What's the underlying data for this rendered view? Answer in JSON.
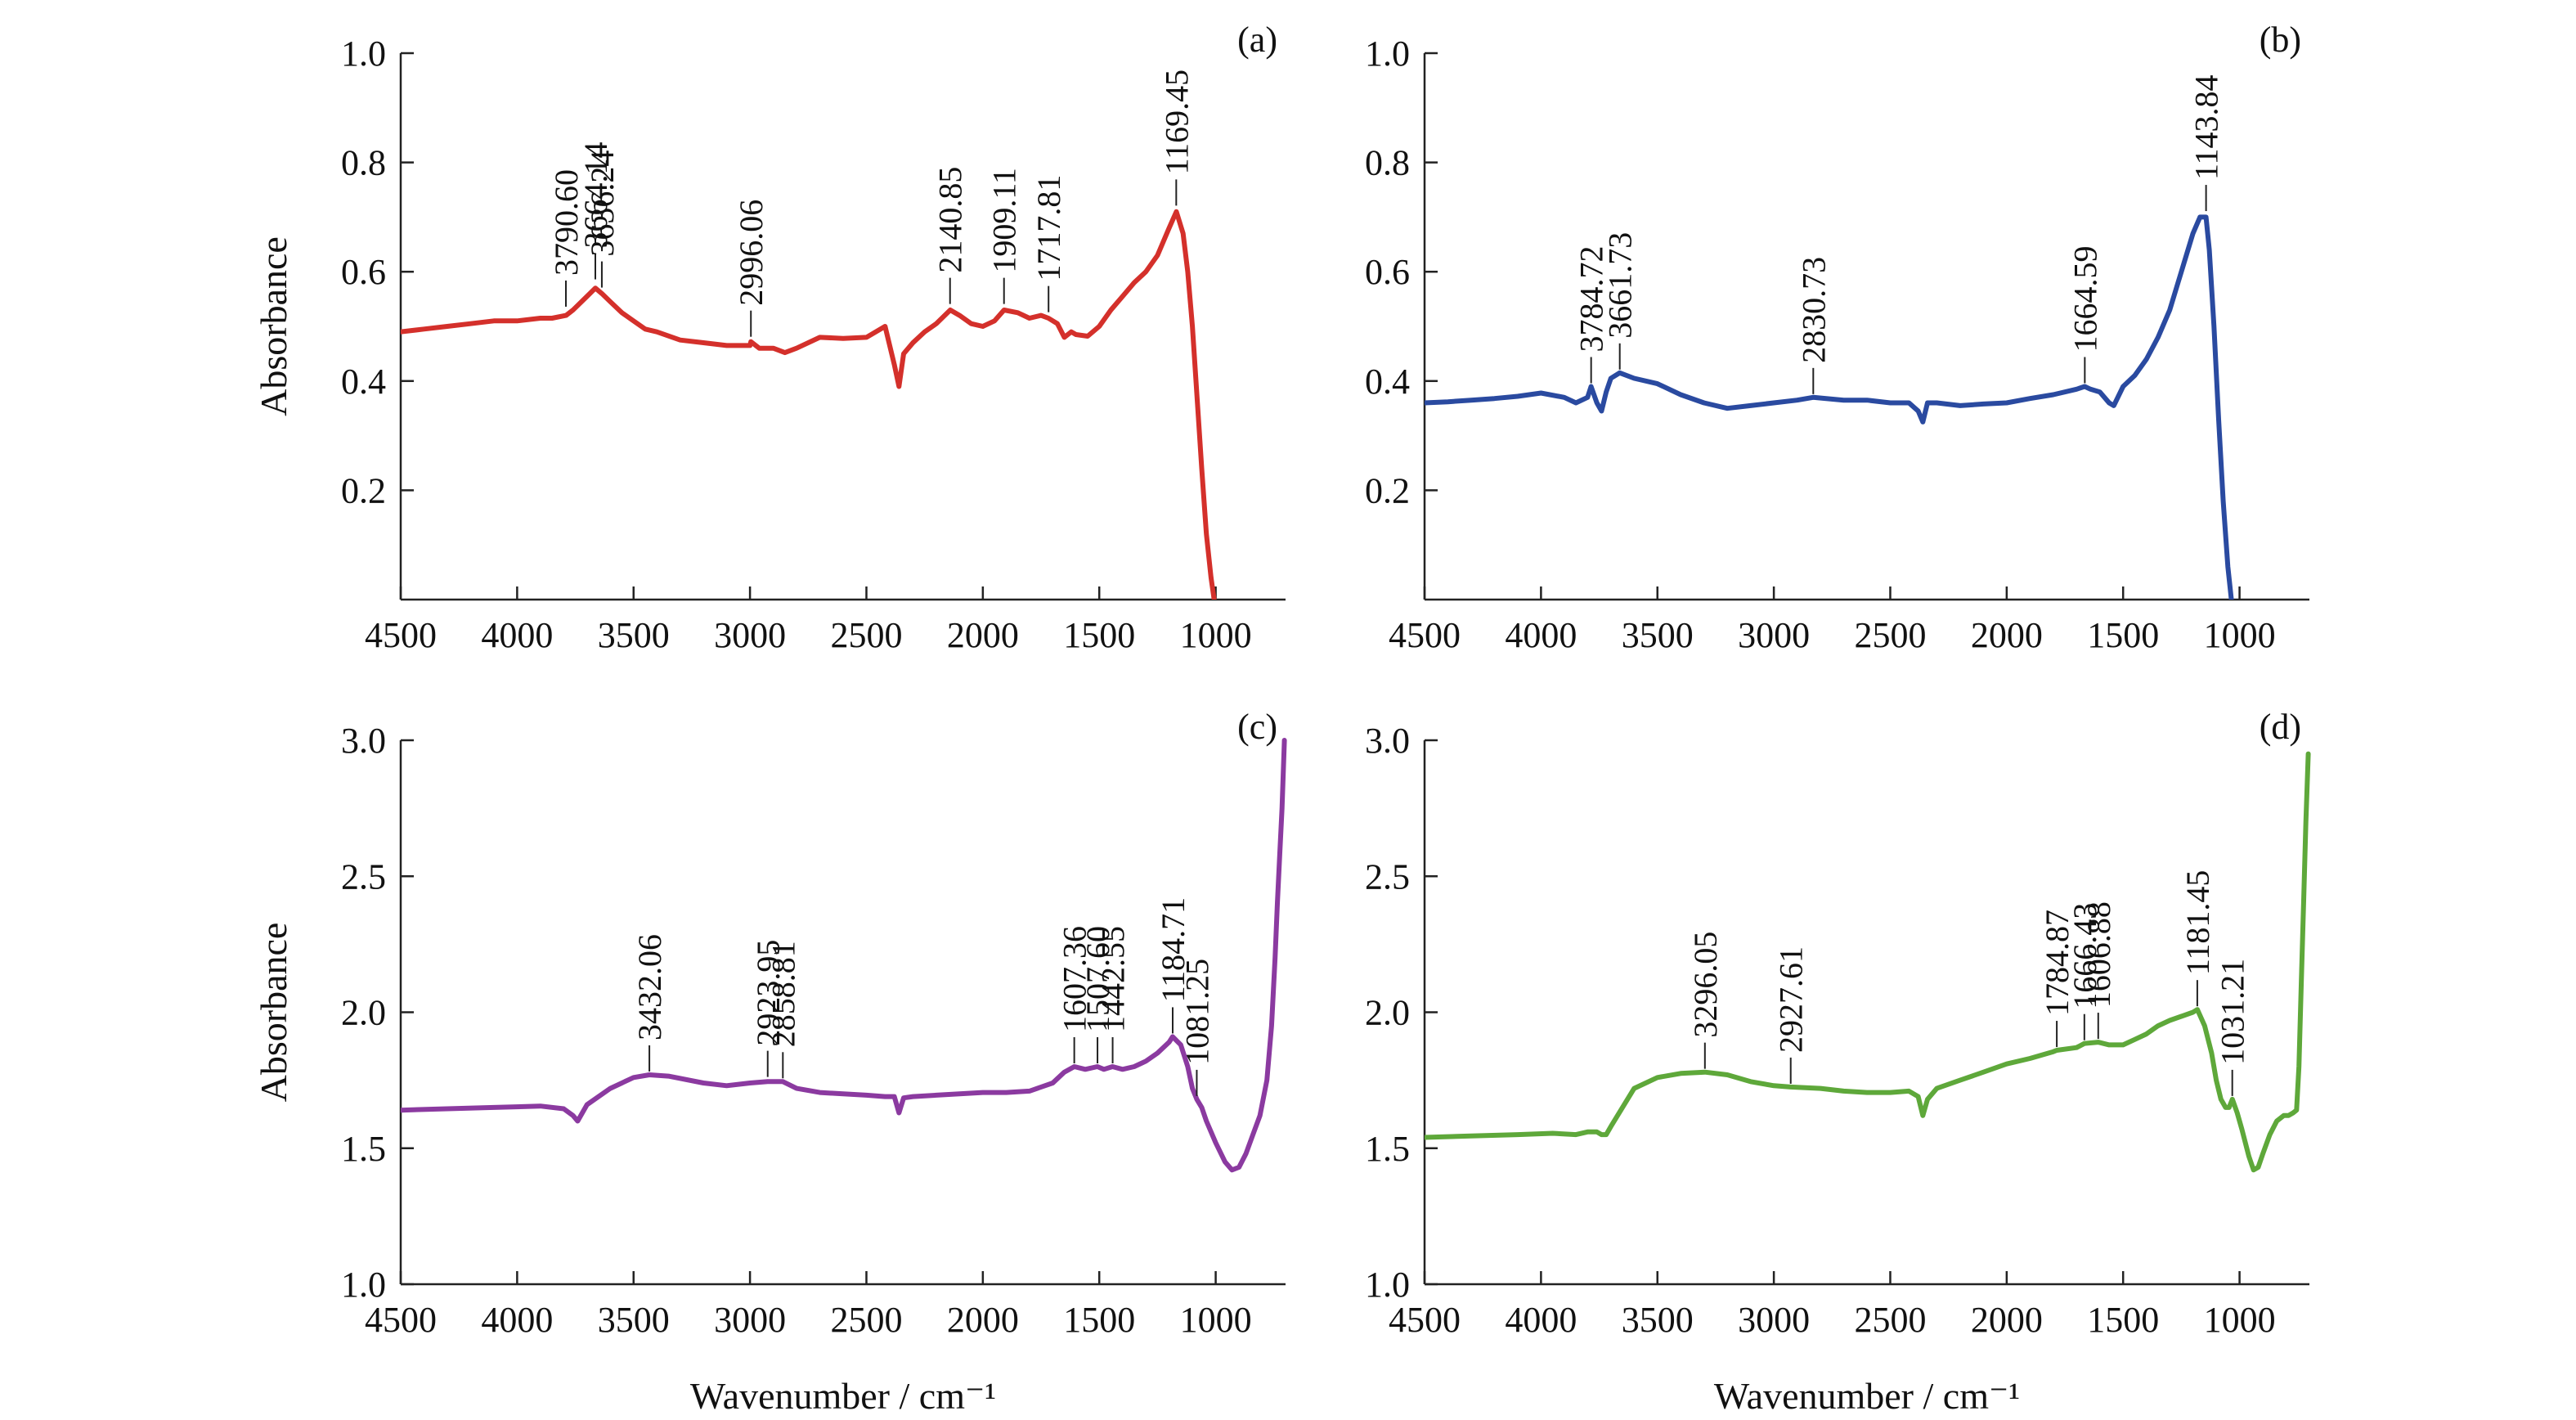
{
  "chart_data": [
    {
      "type": "line",
      "panel": "(a)",
      "ylabel": "Absorbance",
      "xlabel": "",
      "xlim": [
        4500,
        700
      ],
      "ylim": [
        0,
        1.0
      ],
      "x_ticks": [
        "4500",
        "4000",
        "3500",
        "3000",
        "2500",
        "2000",
        "1500",
        "1000"
      ],
      "y_ticks": [
        "0.2",
        "0.4",
        "0.6",
        "0.8",
        "1.0"
      ],
      "color": "#d4302b",
      "series": [
        {
          "x": [
            4500,
            4400,
            4300,
            4200,
            4100,
            4000,
            3900,
            3850,
            3790,
            3760,
            3700,
            3664,
            3636,
            3600,
            3550,
            3500,
            3450,
            3400,
            3300,
            3200,
            3100,
            3000,
            2996,
            2960,
            2900,
            2850,
            2800,
            2700,
            2600,
            2500,
            2420,
            2380,
            2360,
            2340,
            2300,
            2250,
            2200,
            2140,
            2100,
            2050,
            2000,
            1950,
            1909,
            1850,
            1800,
            1750,
            1718,
            1680,
            1650,
            1620,
            1600,
            1550,
            1500,
            1450,
            1400,
            1350,
            1300,
            1250,
            1200,
            1169,
            1140,
            1120,
            1100,
            1080,
            1060,
            1040,
            1020,
            1000
          ],
          "y": [
            0.49,
            0.495,
            0.5,
            0.505,
            0.51,
            0.51,
            0.515,
            0.515,
            0.52,
            0.53,
            0.555,
            0.57,
            0.56,
            0.545,
            0.525,
            0.51,
            0.495,
            0.49,
            0.475,
            0.47,
            0.465,
            0.465,
            0.472,
            0.46,
            0.46,
            0.452,
            0.46,
            0.48,
            0.478,
            0.48,
            0.5,
            0.43,
            0.39,
            0.45,
            0.47,
            0.49,
            0.505,
            0.53,
            0.52,
            0.505,
            0.5,
            0.51,
            0.53,
            0.525,
            0.515,
            0.52,
            0.515,
            0.505,
            0.48,
            0.49,
            0.485,
            0.482,
            0.5,
            0.53,
            0.555,
            0.58,
            0.6,
            0.63,
            0.68,
            0.71,
            0.67,
            0.6,
            0.5,
            0.37,
            0.24,
            0.12,
            0.04,
            -0.02
          ]
        }
      ],
      "peaks": [
        {
          "label": "3790.60",
          "x": 3790.6,
          "y": 0.53
        },
        {
          "label": "3664.14",
          "x": 3664.14,
          "y": 0.58
        },
        {
          "label": "3636.24",
          "x": 3636.24,
          "y": 0.565
        },
        {
          "label": "2996.06",
          "x": 2996.06,
          "y": 0.475
        },
        {
          "label": "2140.85",
          "x": 2140.85,
          "y": 0.535
        },
        {
          "label": "1909.11",
          "x": 1909.11,
          "y": 0.535
        },
        {
          "label": "1717.81",
          "x": 1717.81,
          "y": 0.52
        },
        {
          "label": "1169.45",
          "x": 1169.45,
          "y": 0.715
        }
      ]
    },
    {
      "type": "line",
      "panel": "(b)",
      "ylabel": "",
      "xlabel": "",
      "xlim": [
        4500,
        700
      ],
      "ylim": [
        0,
        1.0
      ],
      "x_ticks": [
        "4500",
        "4000",
        "3500",
        "3000",
        "2500",
        "2000",
        "1500",
        "1000"
      ],
      "y_ticks": [
        "0.2",
        "0.4",
        "0.6",
        "0.8",
        "1.0"
      ],
      "color": "#2a4aa0",
      "series": [
        {
          "x": [
            4500,
            4400,
            4300,
            4200,
            4100,
            4000,
            3900,
            3850,
            3800,
            3785,
            3760,
            3740,
            3720,
            3700,
            3662,
            3600,
            3500,
            3400,
            3300,
            3200,
            3100,
            3000,
            2900,
            2831,
            2700,
            2600,
            2500,
            2420,
            2380,
            2360,
            2340,
            2300,
            2200,
            2100,
            2000,
            1900,
            1800,
            1700,
            1665,
            1640,
            1600,
            1560,
            1540,
            1500,
            1450,
            1400,
            1350,
            1300,
            1250,
            1200,
            1170,
            1144,
            1130,
            1110,
            1090,
            1070,
            1050,
            1030
          ],
          "y": [
            0.36,
            0.362,
            0.365,
            0.368,
            0.372,
            0.378,
            0.37,
            0.36,
            0.37,
            0.39,
            0.36,
            0.345,
            0.38,
            0.405,
            0.415,
            0.405,
            0.395,
            0.375,
            0.36,
            0.35,
            0.355,
            0.36,
            0.365,
            0.37,
            0.365,
            0.365,
            0.36,
            0.36,
            0.345,
            0.325,
            0.36,
            0.36,
            0.355,
            0.358,
            0.36,
            0.368,
            0.375,
            0.385,
            0.39,
            0.385,
            0.38,
            0.36,
            0.355,
            0.39,
            0.41,
            0.44,
            0.48,
            0.53,
            0.6,
            0.67,
            0.7,
            0.7,
            0.64,
            0.5,
            0.33,
            0.18,
            0.06,
            -0.02
          ]
        }
      ],
      "peaks": [
        {
          "label": "3784.72",
          "x": 3784.72,
          "y": 0.39
        },
        {
          "label": "3661.73",
          "x": 3661.73,
          "y": 0.415
        },
        {
          "label": "2830.73",
          "x": 2830.73,
          "y": 0.37
        },
        {
          "label": "1664.59",
          "x": 1664.59,
          "y": 0.39
        },
        {
          "label": "1143.84",
          "x": 1143.84,
          "y": 0.705
        }
      ]
    },
    {
      "type": "line",
      "panel": "(c)",
      "ylabel": "Absorbance",
      "xlabel": "Wavenumber / cm⁻¹",
      "xlim": [
        4500,
        700
      ],
      "ylim": [
        1.0,
        3.0
      ],
      "x_ticks": [
        "4500",
        "4000",
        "3500",
        "3000",
        "2500",
        "2000",
        "1500",
        "1000"
      ],
      "y_ticks": [
        "1.0",
        "1.5",
        "2.0",
        "2.5",
        "3.0"
      ],
      "color": "#8b3aa0",
      "series": [
        {
          "x": [
            4500,
            4300,
            4100,
            3900,
            3800,
            3760,
            3740,
            3720,
            3700,
            3600,
            3500,
            3432,
            3350,
            3200,
            3100,
            3000,
            2924,
            2859,
            2800,
            2700,
            2600,
            2500,
            2420,
            2380,
            2360,
            2340,
            2300,
            2200,
            2100,
            2000,
            1900,
            1800,
            1700,
            1650,
            1607,
            1560,
            1508,
            1480,
            1443,
            1400,
            1350,
            1300,
            1250,
            1200,
            1185,
            1150,
            1120,
            1100,
            1081,
            1060,
            1040,
            1000,
            960,
            930,
            900,
            870,
            840,
            810,
            780,
            760,
            745,
            735,
            725,
            715,
            705
          ],
          "y": [
            1.64,
            1.645,
            1.65,
            1.655,
            1.645,
            1.62,
            1.6,
            1.63,
            1.66,
            1.72,
            1.76,
            1.77,
            1.765,
            1.74,
            1.73,
            1.74,
            1.745,
            1.745,
            1.72,
            1.705,
            1.7,
            1.695,
            1.69,
            1.69,
            1.63,
            1.685,
            1.69,
            1.695,
            1.7,
            1.705,
            1.705,
            1.71,
            1.74,
            1.78,
            1.8,
            1.79,
            1.8,
            1.79,
            1.8,
            1.79,
            1.8,
            1.82,
            1.85,
            1.89,
            1.91,
            1.88,
            1.8,
            1.72,
            1.68,
            1.65,
            1.6,
            1.52,
            1.45,
            1.42,
            1.43,
            1.48,
            1.55,
            1.62,
            1.75,
            1.95,
            2.2,
            2.4,
            2.58,
            2.75,
            3.0
          ]
        }
      ],
      "peaks": [
        {
          "label": "3432.06",
          "x": 3432.06,
          "y": 1.77
        },
        {
          "label": "2923.95",
          "x": 2923.95,
          "y": 1.75
        },
        {
          "label": "2858.81",
          "x": 2858.81,
          "y": 1.745
        },
        {
          "label": "1607.36",
          "x": 1607.36,
          "y": 1.8
        },
        {
          "label": "1507.60",
          "x": 1507.6,
          "y": 1.8
        },
        {
          "label": "1442.55",
          "x": 1442.55,
          "y": 1.8
        },
        {
          "label": "1184.71",
          "x": 1184.71,
          "y": 1.91
        },
        {
          "label": "1081.25",
          "x": 1081.25,
          "y": 1.68
        }
      ]
    },
    {
      "type": "line",
      "panel": "(d)",
      "ylabel": "",
      "xlabel": "Wavenumber / cm⁻¹",
      "xlim": [
        4500,
        700
      ],
      "ylim": [
        1.0,
        3.0
      ],
      "x_ticks": [
        "4500",
        "4000",
        "3500",
        "3000",
        "2500",
        "2000",
        "1500",
        "1000"
      ],
      "y_ticks": [
        "1.0",
        "1.5",
        "2.0",
        "2.5",
        "3.0"
      ],
      "color": "#5ea83a",
      "series": [
        {
          "x": [
            4500,
            4300,
            4100,
            3950,
            3850,
            3800,
            3760,
            3740,
            3720,
            3700,
            3600,
            3500,
            3400,
            3296,
            3200,
            3100,
            3000,
            2928,
            2800,
            2700,
            2600,
            2500,
            2420,
            2380,
            2360,
            2340,
            2300,
            2200,
            2100,
            2000,
            1900,
            1800,
            1785,
            1700,
            1666,
            1607,
            1560,
            1500,
            1450,
            1400,
            1350,
            1300,
            1250,
            1200,
            1181,
            1150,
            1120,
            1100,
            1080,
            1060,
            1045,
            1031,
            1010,
            990,
            960,
            940,
            920,
            900,
            870,
            840,
            810,
            790,
            770,
            755,
            745,
            735,
            725,
            715,
            705
          ],
          "y": [
            1.54,
            1.545,
            1.55,
            1.555,
            1.55,
            1.56,
            1.56,
            1.55,
            1.55,
            1.58,
            1.72,
            1.76,
            1.775,
            1.78,
            1.77,
            1.745,
            1.73,
            1.725,
            1.72,
            1.71,
            1.705,
            1.705,
            1.71,
            1.69,
            1.62,
            1.68,
            1.72,
            1.75,
            1.78,
            1.81,
            1.83,
            1.855,
            1.86,
            1.87,
            1.885,
            1.89,
            1.88,
            1.88,
            1.9,
            1.92,
            1.95,
            1.97,
            1.985,
            2.0,
            2.01,
            1.95,
            1.85,
            1.75,
            1.68,
            1.65,
            1.65,
            1.68,
            1.63,
            1.57,
            1.47,
            1.42,
            1.43,
            1.48,
            1.55,
            1.6,
            1.62,
            1.62,
            1.63,
            1.64,
            1.8,
            2.1,
            2.4,
            2.7,
            2.95
          ]
        }
      ],
      "peaks": [
        {
          "label": "3296.05",
          "x": 3296.05,
          "y": 1.78
        },
        {
          "label": "2927.61",
          "x": 2927.61,
          "y": 1.725
        },
        {
          "label": "1784.87",
          "x": 1784.87,
          "y": 1.86
        },
        {
          "label": "1666.43",
          "x": 1666.43,
          "y": 1.885
        },
        {
          "label": "1606.88",
          "x": 1606.88,
          "y": 1.89
        },
        {
          "label": "1181.45",
          "x": 1181.45,
          "y": 2.01
        },
        {
          "label": "1031.21",
          "x": 1031.21,
          "y": 1.68
        }
      ]
    }
  ]
}
